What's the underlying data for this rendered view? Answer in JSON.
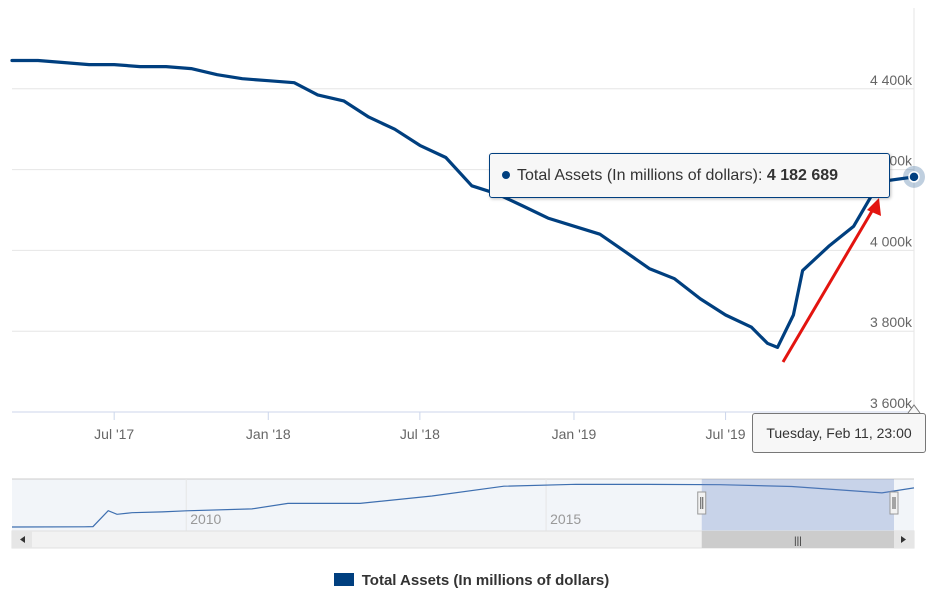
{
  "chart_data": {
    "type": "line",
    "series": [
      {
        "name": "Total Assets (In millions of dollars)",
        "color": "#003f7f",
        "x": [
          "2017-03-01",
          "2017-04-01",
          "2017-05-01",
          "2017-06-01",
          "2017-07-01",
          "2017-08-01",
          "2017-09-01",
          "2017-10-01",
          "2017-11-01",
          "2017-12-01",
          "2018-01-01",
          "2018-02-01",
          "2018-03-01",
          "2018-04-01",
          "2018-05-01",
          "2018-06-01",
          "2018-07-01",
          "2018-08-01",
          "2018-09-01",
          "2018-10-01",
          "2018-11-01",
          "2018-12-01",
          "2019-01-01",
          "2019-02-01",
          "2019-03-01",
          "2019-04-01",
          "2019-05-01",
          "2019-06-01",
          "2019-07-01",
          "2019-08-01",
          "2019-08-20",
          "2019-09-01",
          "2019-09-20",
          "2019-10-01",
          "2019-11-01",
          "2019-12-01",
          "2020-01-01",
          "2020-02-11"
        ],
        "y": [
          4470,
          4470,
          4465,
          4460,
          4460,
          4455,
          4455,
          4450,
          4435,
          4425,
          4420,
          4415,
          4385,
          4370,
          4330,
          4300,
          4260,
          4230,
          4160,
          4140,
          4110,
          4080,
          4060,
          4040,
          4000,
          3955,
          3930,
          3880,
          3840,
          3810,
          3770,
          3760,
          3840,
          3950,
          4010,
          4060,
          4170,
          4182
        ]
      }
    ],
    "y_ticks": [
      "3 600k",
      "3 800k",
      "4 000k",
      "4 200k",
      "4 400k"
    ],
    "y_range": [
      3600,
      4600
    ],
    "x_ticks": [
      "Jul '17",
      "Jan '18",
      "Jul '18",
      "Jan '19",
      "Jul '19"
    ],
    "x_range": [
      "2017-03-01",
      "2020-02-11"
    ],
    "grid": "horizontal",
    "navigator_labels": [
      "2010",
      "2015"
    ],
    "navigator_trace": [
      {
        "x": "2007-08-01",
        "y": 870
      },
      {
        "x": "2008-08-01",
        "y": 890
      },
      {
        "x": "2008-09-15",
        "y": 900
      },
      {
        "x": "2008-12-01",
        "y": 2250
      },
      {
        "x": "2009-01-15",
        "y": 1950
      },
      {
        "x": "2009-04-01",
        "y": 2080
      },
      {
        "x": "2009-09-01",
        "y": 2150
      },
      {
        "x": "2010-01-01",
        "y": 2240
      },
      {
        "x": "2010-12-01",
        "y": 2400
      },
      {
        "x": "2011-06-01",
        "y": 2870
      },
      {
        "x": "2012-06-01",
        "y": 2870
      },
      {
        "x": "2013-06-01",
        "y": 3500
      },
      {
        "x": "2014-06-01",
        "y": 4330
      },
      {
        "x": "2015-06-01",
        "y": 4490
      },
      {
        "x": "2016-06-01",
        "y": 4480
      },
      {
        "x": "2017-06-01",
        "y": 4460
      },
      {
        "x": "2018-06-01",
        "y": 4300
      },
      {
        "x": "2019-09-01",
        "y": 3760
      },
      {
        "x": "2020-02-11",
        "y": 4182
      }
    ],
    "navigator_range": [
      "2007-08-01",
      "2020-02-11"
    ],
    "navigator_window": [
      "2017-03-01",
      "2020-02-11"
    ],
    "legend_position": "bottom-center"
  },
  "tooltip": {
    "series_name": "Total Assets (In millions of dollars):",
    "value": "4 182 689"
  },
  "crosshair_date": "Tuesday, Feb 11, 23:00",
  "legend": {
    "label": "Total Assets (In millions of dollars)"
  },
  "scrollbar": {
    "left_icon": "arrow-left-icon",
    "right_icon": "arrow-right-icon",
    "thumb_grip": "|||"
  },
  "annotation": {
    "type": "arrow",
    "color": "#e3140f",
    "description_from": "2019-09-25 low",
    "to": "2020-02 high"
  }
}
